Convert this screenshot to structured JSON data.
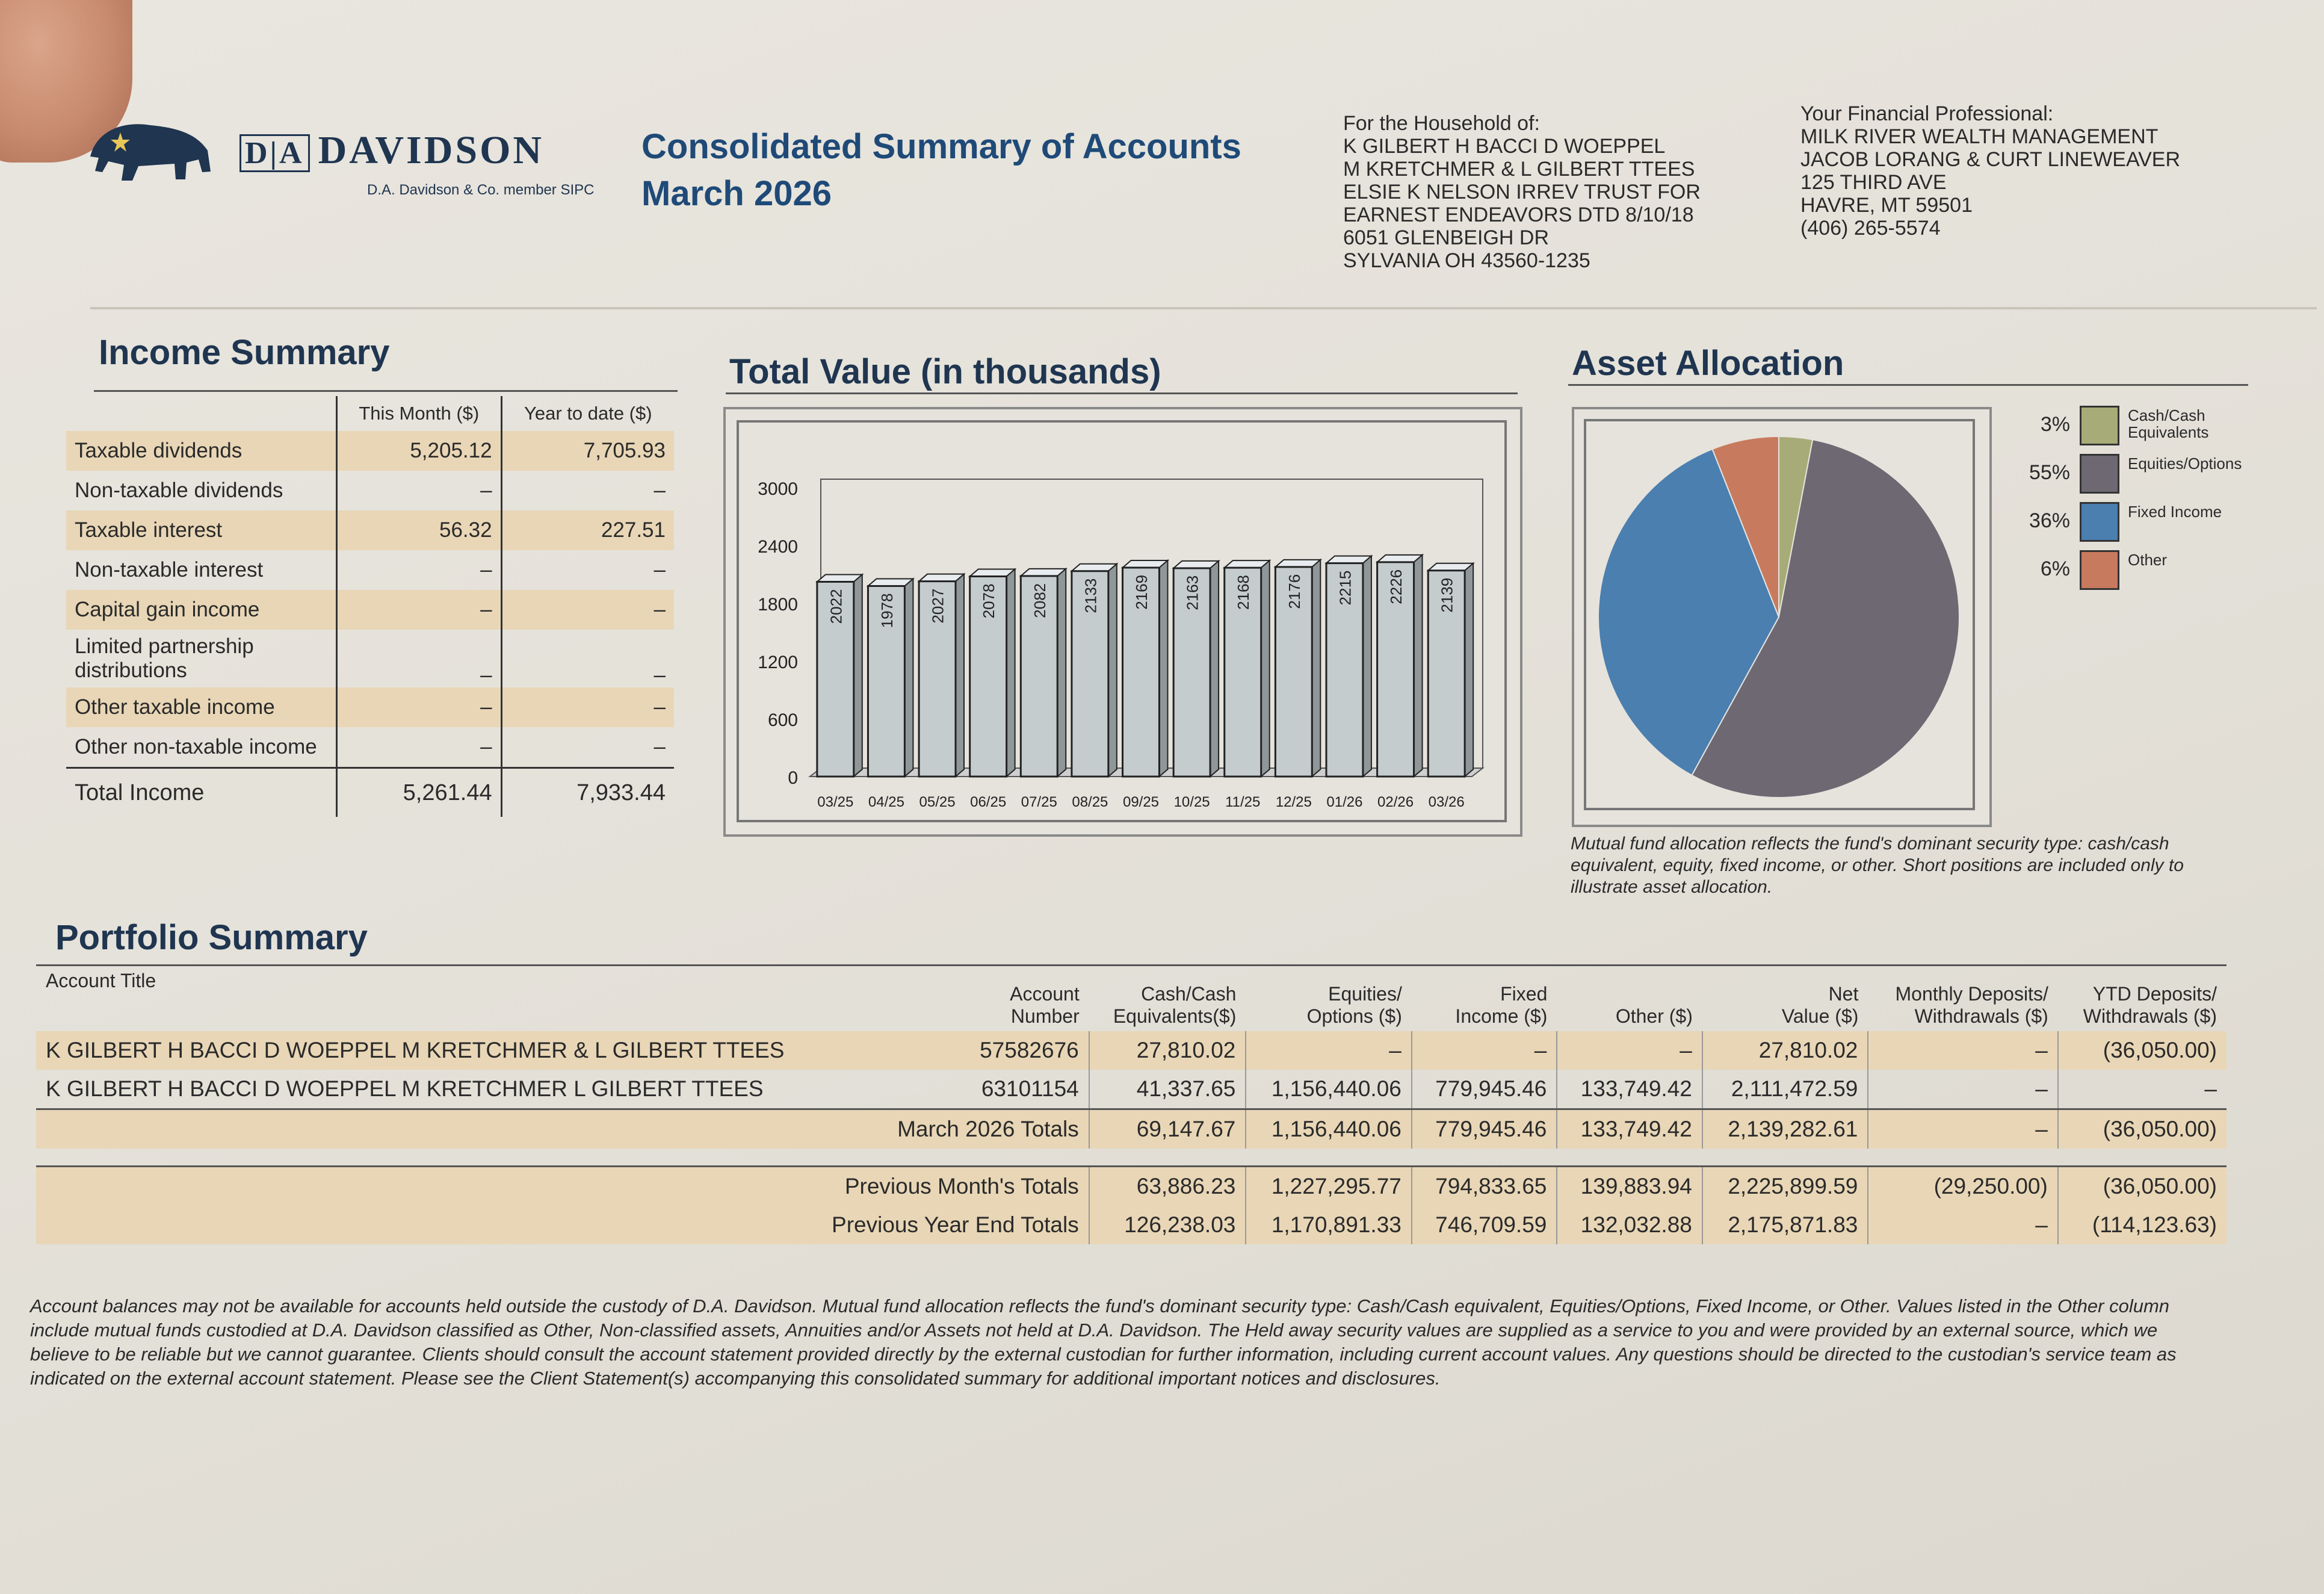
{
  "header": {
    "brand": "DAVIDSON",
    "brand_prefix": "D|A",
    "brand_sub": "D.A. Davidson & Co. member SIPC",
    "title": "Consolidated Summary of Accounts",
    "period": "March 2026"
  },
  "household": {
    "label": "For the Household of:",
    "lines": [
      "K GILBERT H BACCI D WOEPPEL",
      "M KRETCHMER & L GILBERT TTEES",
      "ELSIE K NELSON IRREV TRUST FOR",
      "EARNEST ENDEAVORS DTD 8/10/18",
      "6051 GLENBEIGH DR",
      "SYLVANIA OH  43560-1235"
    ]
  },
  "advisor": {
    "label": "Your Financial Professional:",
    "lines": [
      "MILK RIVER WEALTH MANAGEMENT",
      "JACOB LORANG & CURT LINEWEAVER",
      "125 THIRD AVE",
      "HAVRE, MT 59501",
      "(406) 265-5574"
    ]
  },
  "income": {
    "title": "Income Summary",
    "col_month": "This Month ($)",
    "col_ytd": "Year to date ($)",
    "rows": [
      {
        "label": "Taxable dividends",
        "month": "5,205.12",
        "ytd": "7,705.93"
      },
      {
        "label": "Non-taxable dividends",
        "month": "–",
        "ytd": "–"
      },
      {
        "label": "Taxable interest",
        "month": "56.32",
        "ytd": "227.51"
      },
      {
        "label": "Non-taxable interest",
        "month": "–",
        "ytd": "–"
      },
      {
        "label": "Capital gain income",
        "month": "–",
        "ytd": "–"
      },
      {
        "label": "Limited partnership distributions",
        "month": "–",
        "ytd": "–"
      },
      {
        "label": "Other taxable income",
        "month": "–",
        "ytd": "–"
      },
      {
        "label": "Other non-taxable income",
        "month": "–",
        "ytd": "–"
      }
    ],
    "total": {
      "label": "Total Income",
      "month": "5,261.44",
      "ytd": "7,933.44"
    }
  },
  "total_value": {
    "title": "Total Value (in thousands)"
  },
  "asset_allocation": {
    "title": "Asset Allocation",
    "note": "Mutual fund allocation reflects the fund's dominant security type: cash/cash equivalent, equity, fixed income, or other. Short positions are included only to illustrate asset allocation.",
    "legend": [
      {
        "pct": "3%",
        "label": "Cash/Cash Equivalents",
        "color": "#a7ab78"
      },
      {
        "pct": "55%",
        "label": "Equities/Options",
        "color": "#6d6872"
      },
      {
        "pct": "36%",
        "label": "Fixed Income",
        "color": "#4a7fb0"
      },
      {
        "pct": "6%",
        "label": "Other",
        "color": "#c87a5e"
      }
    ]
  },
  "chart_data": [
    {
      "type": "bar",
      "title": "Total Value (in thousands)",
      "categories": [
        "03/25",
        "04/25",
        "05/25",
        "06/25",
        "07/25",
        "08/25",
        "09/25",
        "10/25",
        "11/25",
        "12/25",
        "01/26",
        "02/26",
        "03/26"
      ],
      "values": [
        2022,
        1978,
        2027,
        2078,
        2082,
        2133,
        2169,
        2163,
        2168,
        2176,
        2215,
        2226,
        2139
      ],
      "yticks": [
        0,
        600,
        1200,
        1800,
        2400,
        3000
      ],
      "ylim": [
        0,
        3000
      ],
      "xlabel": "",
      "ylabel": ""
    },
    {
      "type": "pie",
      "title": "Asset Allocation",
      "labels": [
        "Cash/Cash Equivalents",
        "Equities/Options",
        "Fixed Income",
        "Other"
      ],
      "values": [
        3,
        55,
        36,
        6
      ],
      "colors": [
        "#a7ab78",
        "#6d6872",
        "#4a7fb0",
        "#c87a5e"
      ]
    }
  ],
  "portfolio": {
    "title": "Portfolio Summary",
    "columns": {
      "title": "Account Title",
      "number": [
        "Account",
        "Number"
      ],
      "cash": [
        "Cash/Cash",
        "Equivalents($)"
      ],
      "equities": [
        "Equities/",
        "Options ($)"
      ],
      "fixed": [
        "Fixed",
        "Income ($)"
      ],
      "other": "Other ($)",
      "net": [
        "Net",
        "Value ($)"
      ],
      "monthly": [
        "Monthly Deposits/",
        "Withdrawals ($)"
      ],
      "ytd": [
        "YTD Deposits/",
        "Withdrawals ($)"
      ]
    },
    "accounts": [
      {
        "title": "K GILBERT H BACCI D WOEPPEL M KRETCHMER & L GILBERT TTEES",
        "number": "57582676",
        "cash": "27,810.02",
        "equities": "–",
        "fixed": "–",
        "other": "–",
        "net": "27,810.02",
        "monthly": "–",
        "ytd": "(36,050.00)"
      },
      {
        "title": "K GILBERT H BACCI D WOEPPEL M KRETCHMER L GILBERT TTEES",
        "number": "63101154",
        "cash": "41,337.65",
        "equities": "1,156,440.06",
        "fixed": "779,945.46",
        "other": "133,749.42",
        "net": "2,111,472.59",
        "monthly": "–",
        "ytd": "–"
      }
    ],
    "totals": [
      {
        "label": "March 2026 Totals",
        "cash": "69,147.67",
        "equities": "1,156,440.06",
        "fixed": "779,945.46",
        "other": "133,749.42",
        "net": "2,139,282.61",
        "monthly": "–",
        "ytd": "(36,050.00)"
      },
      {
        "label": "Previous Month's Totals",
        "cash": "63,886.23",
        "equities": "1,227,295.77",
        "fixed": "794,833.65",
        "other": "139,883.94",
        "net": "2,225,899.59",
        "monthly": "(29,250.00)",
        "ytd": "(36,050.00)"
      },
      {
        "label": "Previous Year End Totals",
        "cash": "126,238.03",
        "equities": "1,170,891.33",
        "fixed": "746,709.59",
        "other": "132,032.88",
        "net": "2,175,871.83",
        "monthly": "–",
        "ytd": "(114,123.63)"
      }
    ]
  },
  "disclaimer": "Account balances may not be available for accounts held outside the custody of D.A. Davidson. Mutual fund allocation reflects the fund's dominant security type: Cash/Cash equivalent, Equities/Options, Fixed Income, or Other. Values listed in the Other column include mutual funds custodied at D.A. Davidson classified as Other, Non-classified assets, Annuities and/or Assets not held at D.A. Davidson. The Held away security values are supplied as a service to you and were provided by an external source, which we believe to be reliable but we cannot guarantee. Clients should consult the account statement provided directly by the external custodian for further information, including current account values. Any questions should be directed to the custodian's service team as indicated on the external account statement. Please see the Client Statement(s) accompanying this consolidated summary for additional important notices and disclosures."
}
